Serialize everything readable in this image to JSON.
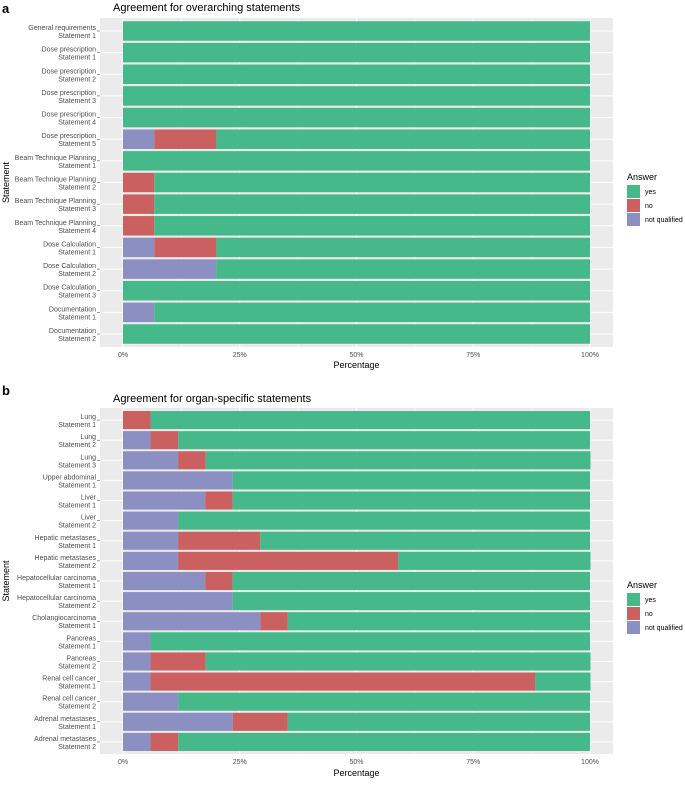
{
  "colors": {
    "yes": "#45B98A",
    "no": "#CA6060",
    "not qualified": "#8B8FC2",
    "panel": "#EBEBEB"
  },
  "chart_data": [
    {
      "type": "bar",
      "orientation": "horizontal",
      "stacked": true,
      "panel_label": "a",
      "title": "Agreement for overarching statements",
      "xlabel": "Percentage",
      "ylabel": "Statement",
      "xlim": [
        0,
        100
      ],
      "x_ticks": [
        "0%",
        "25%",
        "50%",
        "75%",
        "100%"
      ],
      "legend": {
        "title": "Answer",
        "entries": [
          "yes",
          "no",
          "not qualified"
        ],
        "placement": "right"
      },
      "categories": [
        [
          "General requirements",
          "Statement 1"
        ],
        [
          "Dose prescription",
          "Statement 1"
        ],
        [
          "Dose prescription",
          "Statement 2"
        ],
        [
          "Dose prescription",
          "Statement 3"
        ],
        [
          "Dose prescription",
          "Statement 4"
        ],
        [
          "Dose prescription",
          "Statement 5"
        ],
        [
          "Beam Technique Planning",
          "Statement 1"
        ],
        [
          "Beam Technique Planning",
          "Statement 2"
        ],
        [
          "Beam Technique Planning",
          "Statement 3"
        ],
        [
          "Beam Technique Planning",
          "Statement 4"
        ],
        [
          "Dose Calculation",
          "Statement 1"
        ],
        [
          "Dose Calculation",
          "Statement 2"
        ],
        [
          "Dose Calculation",
          "Statement 3"
        ],
        [
          "Documentation",
          "Statement 1"
        ],
        [
          "Documentation",
          "Statement 2"
        ]
      ],
      "series": [
        {
          "name": "not qualified",
          "values": [
            0,
            0,
            0,
            0,
            0,
            6.7,
            0,
            0,
            0,
            0,
            6.7,
            20,
            0,
            6.7,
            0
          ]
        },
        {
          "name": "no",
          "values": [
            0,
            0,
            0,
            0,
            0,
            13.3,
            0,
            6.7,
            6.7,
            6.7,
            13.3,
            0,
            0,
            0,
            0
          ]
        },
        {
          "name": "yes",
          "values": [
            100,
            100,
            100,
            100,
            100,
            80,
            100,
            93.3,
            93.3,
            93.3,
            80,
            80,
            100,
            93.3,
            100
          ]
        }
      ]
    },
    {
      "type": "bar",
      "orientation": "horizontal",
      "stacked": true,
      "panel_label": "b",
      "title": "Agreement for organ-specific statements",
      "xlabel": "Percentage",
      "ylabel": "Statement",
      "xlim": [
        0,
        100
      ],
      "x_ticks": [
        "0%",
        "25%",
        "50%",
        "75%",
        "100%"
      ],
      "legend": {
        "title": "Answer",
        "entries": [
          "yes",
          "no",
          "not qualified"
        ],
        "placement": "right"
      },
      "categories": [
        [
          "Lung",
          "Statement 1"
        ],
        [
          "Lung",
          "Statement 2"
        ],
        [
          "Lung",
          "Statement 3"
        ],
        [
          "Upper abdominal",
          "Statement 1"
        ],
        [
          "Liver",
          "Statement 1"
        ],
        [
          "Liver",
          "Statement 2"
        ],
        [
          "Hepatic metastases",
          "Statement 1"
        ],
        [
          "Hepatic metastases",
          "Statement 2"
        ],
        [
          "Hepatocellular carcinoma",
          "Statement 1"
        ],
        [
          "Hepatocellular carcinoma",
          "Statement 2"
        ],
        [
          "Cholangiocarcinoma",
          "Statement 1"
        ],
        [
          "Pancreas",
          "Statement 1"
        ],
        [
          "Pancreas",
          "Statement 2"
        ],
        [
          "Renal cell cancer",
          "Statement 1"
        ],
        [
          "Renal cell cancer",
          "Statement 2"
        ],
        [
          "Adrenal metastases",
          "Statement 1"
        ],
        [
          "Adrenal metastases",
          "Statement 2"
        ]
      ],
      "series": [
        {
          "name": "not qualified",
          "values": [
            0,
            5.9,
            11.8,
            23.5,
            17.6,
            11.8,
            11.8,
            11.8,
            17.6,
            23.5,
            29.4,
            5.9,
            5.9,
            5.9,
            11.8,
            23.5,
            5.9
          ]
        },
        {
          "name": "no",
          "values": [
            5.9,
            5.9,
            5.9,
            0,
            5.9,
            0,
            17.6,
            47.1,
            5.9,
            0,
            5.9,
            0,
            11.8,
            82.4,
            0,
            11.8,
            5.9
          ]
        },
        {
          "name": "yes",
          "values": [
            94.1,
            88.2,
            82.4,
            76.5,
            76.5,
            88.2,
            70.6,
            41.2,
            76.5,
            76.5,
            64.7,
            94.1,
            82.4,
            11.8,
            88.2,
            64.7,
            88.2
          ]
        }
      ]
    }
  ]
}
